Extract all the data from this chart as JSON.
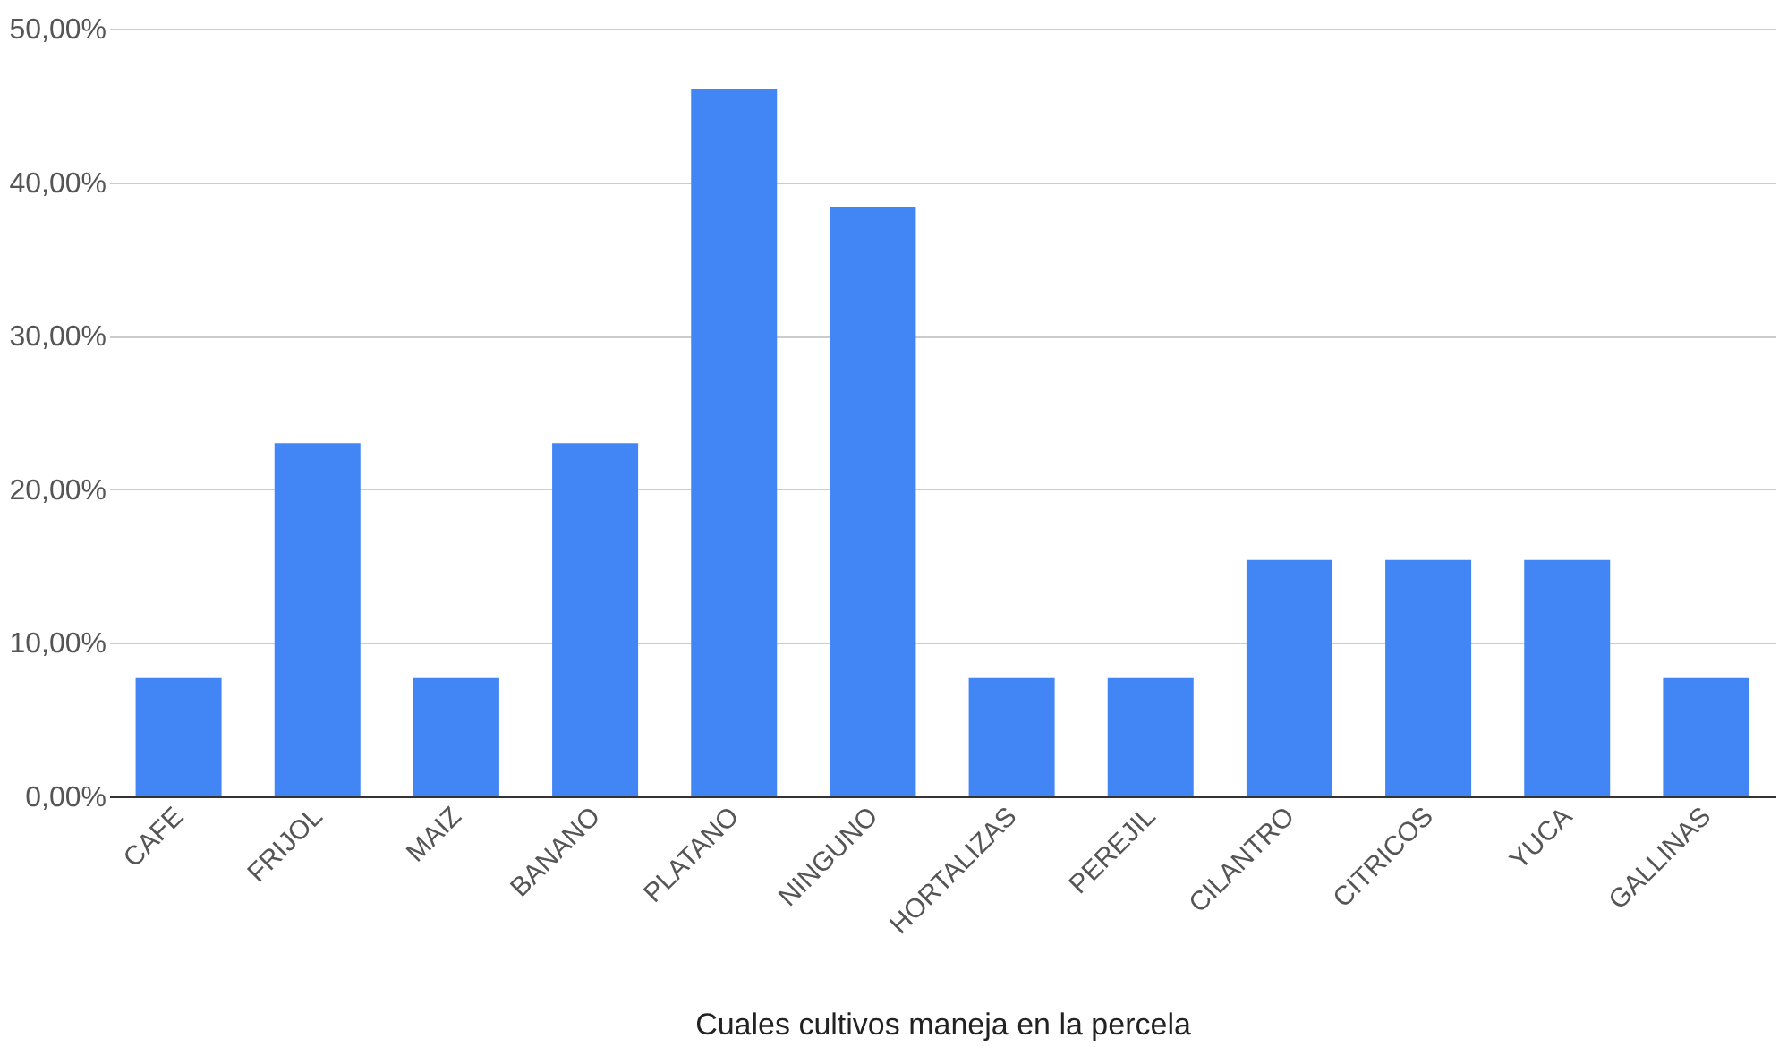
{
  "chart_data": {
    "type": "bar",
    "xlabel": "Cuales cultivos maneja en la percela",
    "categories": [
      "CAFE",
      "FRIJOL",
      "MAIZ",
      "BANANO",
      "PLATANO",
      "NINGUNO",
      "HORTALIZAS",
      "PEREJIL",
      "CILANTRO",
      "CITRICOS",
      "YUCA",
      "GALLINAS"
    ],
    "values": [
      7.7,
      23.0,
      7.7,
      23.0,
      46.1,
      38.4,
      7.7,
      7.7,
      15.4,
      15.4,
      15.4,
      7.7
    ],
    "color": "#4285f4",
    "ylim": [
      0,
      50
    ],
    "yticks": [
      {
        "value": 0,
        "label": "0,00%"
      },
      {
        "value": 10,
        "label": "10,00%"
      },
      {
        "value": 20,
        "label": "20,00%"
      },
      {
        "value": 30,
        "label": "30,00%"
      },
      {
        "value": 40,
        "label": "40,00%"
      },
      {
        "value": 50,
        "label": "50,00%"
      }
    ],
    "grid": "y"
  }
}
